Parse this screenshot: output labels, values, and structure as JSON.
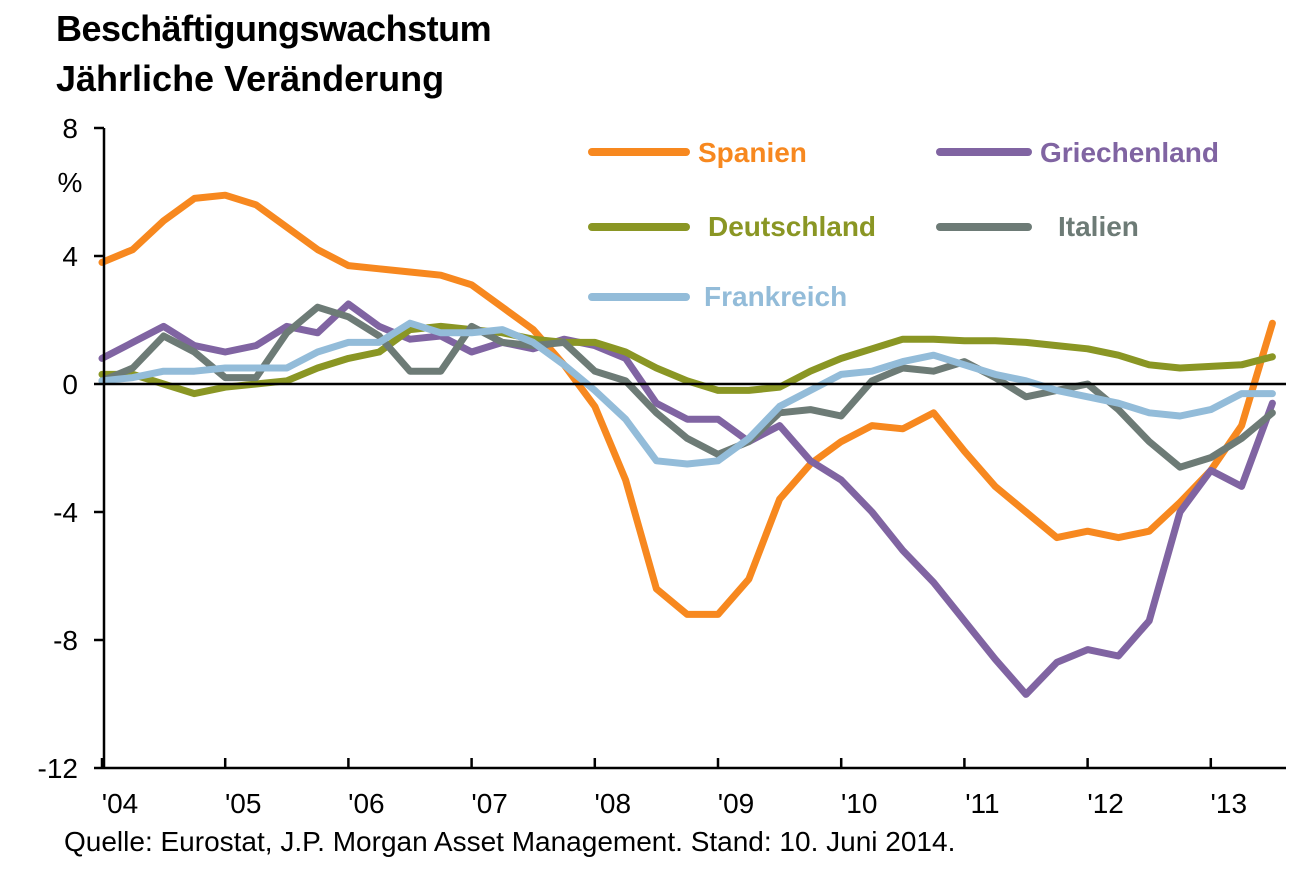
{
  "chart_data": {
    "type": "line",
    "title": "Beschäftigungswachstum",
    "subtitle": "Jährliche Veränderung",
    "ylabel": "%",
    "ylim": [
      -12,
      8
    ],
    "yticks": [
      8,
      4,
      0,
      -4,
      -8,
      -12
    ],
    "ytick_labels": [
      "8",
      "4",
      "0",
      "-4",
      "-8",
      "-12"
    ],
    "xlim": [
      2004,
      2013.75
    ],
    "xticks": [
      2004,
      2005,
      2006,
      2007,
      2008,
      2009,
      2010,
      2011,
      2012,
      2013
    ],
    "xtick_labels": [
      "'04",
      "'05",
      "'06",
      "'07",
      "'08",
      "'09",
      "'10",
      "'11",
      "'12",
      "'13"
    ],
    "grid": false,
    "legend_position": "top-right",
    "series": [
      {
        "name": "Spanien",
        "color": "#f7881f",
        "x": [
          2004,
          2004.25,
          2004.5,
          2004.75,
          2005,
          2005.25,
          2005.5,
          2005.75,
          2006,
          2006.25,
          2006.5,
          2006.75,
          2007,
          2007.25,
          2007.5,
          2007.75,
          2008,
          2008.25,
          2008.5,
          2008.75,
          2009,
          2009.25,
          2009.5,
          2009.75,
          2010,
          2010.25,
          2010.5,
          2010.75,
          2011,
          2011.25,
          2011.5,
          2011.75,
          2012,
          2012.25,
          2012.5,
          2012.75,
          2013,
          2013.25,
          2013.5
        ],
        "values": [
          3.8,
          4.2,
          5.1,
          5.8,
          5.9,
          5.6,
          4.9,
          4.2,
          3.7,
          3.6,
          3.5,
          3.4,
          3.1,
          2.4,
          1.7,
          0.6,
          -0.7,
          -3.0,
          -6.4,
          -7.2,
          -7.2,
          -6.1,
          -3.6,
          -2.5,
          -1.8,
          -1.3,
          -1.4,
          -0.9,
          -2.1,
          -3.2,
          -4.0,
          -4.8,
          -4.6,
          -4.8,
          -4.6,
          -3.7,
          -2.7,
          -1.3,
          1.9
        ]
      },
      {
        "name": "Griechenland",
        "color": "#8064a2",
        "x": [
          2004,
          2004.25,
          2004.5,
          2004.75,
          2005,
          2005.25,
          2005.5,
          2005.75,
          2006,
          2006.25,
          2006.5,
          2006.75,
          2007,
          2007.25,
          2007.5,
          2007.75,
          2008,
          2008.25,
          2008.5,
          2008.75,
          2009,
          2009.25,
          2009.5,
          2009.75,
          2010,
          2010.25,
          2010.5,
          2010.75,
          2011,
          2011.25,
          2011.5,
          2011.75,
          2012,
          2012.25,
          2012.5,
          2012.75,
          2013,
          2013.25,
          2013.5
        ],
        "values": [
          0.8,
          1.3,
          1.8,
          1.2,
          1.0,
          1.2,
          1.8,
          1.6,
          2.5,
          1.8,
          1.4,
          1.5,
          1.0,
          1.3,
          1.1,
          1.4,
          1.2,
          0.8,
          -0.6,
          -1.1,
          -1.1,
          -1.8,
          -1.3,
          -2.4,
          -3.0,
          -4.0,
          -5.2,
          -6.2,
          -7.4,
          -8.6,
          -9.7,
          -8.7,
          -8.3,
          -8.5,
          -7.4,
          -4.0,
          -2.7,
          -3.2,
          -0.6
        ]
      },
      {
        "name": "Deutschland",
        "color": "#8a9624",
        "x": [
          2004,
          2004.25,
          2004.5,
          2004.75,
          2005,
          2005.25,
          2005.5,
          2005.75,
          2006,
          2006.25,
          2006.5,
          2006.75,
          2007,
          2007.25,
          2007.5,
          2007.75,
          2008,
          2008.25,
          2008.5,
          2008.75,
          2009,
          2009.25,
          2009.5,
          2009.75,
          2010,
          2010.25,
          2010.5,
          2010.75,
          2011,
          2011.25,
          2011.5,
          2011.75,
          2012,
          2012.25,
          2012.5,
          2012.75,
          2013,
          2013.25,
          2013.5
        ],
        "values": [
          0.3,
          0.3,
          0.0,
          -0.3,
          -0.1,
          0.0,
          0.1,
          0.5,
          0.8,
          1.0,
          1.7,
          1.8,
          1.7,
          1.6,
          1.4,
          1.3,
          1.3,
          1.0,
          0.5,
          0.1,
          -0.2,
          -0.2,
          -0.1,
          0.4,
          0.8,
          1.1,
          1.4,
          1.4,
          1.35,
          1.35,
          1.3,
          1.2,
          1.1,
          0.9,
          0.6,
          0.5,
          0.55,
          0.6,
          0.85
        ]
      },
      {
        "name": "Italien",
        "color": "#6d7b76",
        "x": [
          2004,
          2004.25,
          2004.5,
          2004.75,
          2005,
          2005.25,
          2005.5,
          2005.75,
          2006,
          2006.25,
          2006.5,
          2006.75,
          2007,
          2007.25,
          2007.5,
          2007.75,
          2008,
          2008.25,
          2008.5,
          2008.75,
          2009,
          2009.25,
          2009.5,
          2009.75,
          2010,
          2010.25,
          2010.5,
          2010.75,
          2011,
          2011.25,
          2011.5,
          2011.75,
          2012,
          2012.25,
          2012.5,
          2012.75,
          2013,
          2013.25,
          2013.5
        ],
        "values": [
          0.1,
          0.5,
          1.5,
          1.0,
          0.2,
          0.2,
          1.6,
          2.4,
          2.1,
          1.5,
          0.4,
          0.4,
          1.8,
          1.3,
          1.2,
          1.3,
          0.4,
          0.1,
          -0.9,
          -1.7,
          -2.2,
          -1.8,
          -0.9,
          -0.8,
          -1.0,
          0.1,
          0.5,
          0.4,
          0.7,
          0.2,
          -0.4,
          -0.2,
          0.0,
          -0.8,
          -1.8,
          -2.6,
          -2.3,
          -1.7,
          -0.9
        ]
      },
      {
        "name": "Frankreich",
        "color": "#93bcd9",
        "x": [
          2004,
          2004.25,
          2004.5,
          2004.75,
          2005,
          2005.25,
          2005.5,
          2005.75,
          2006,
          2006.25,
          2006.5,
          2006.75,
          2007,
          2007.25,
          2007.5,
          2007.75,
          2008,
          2008.25,
          2008.5,
          2008.75,
          2009,
          2009.25,
          2009.5,
          2009.75,
          2010,
          2010.25,
          2010.5,
          2010.75,
          2011,
          2011.25,
          2011.5,
          2011.75,
          2012,
          2012.25,
          2012.5,
          2012.75,
          2013,
          2013.25,
          2013.5
        ],
        "values": [
          0.1,
          0.2,
          0.4,
          0.4,
          0.5,
          0.5,
          0.5,
          1.0,
          1.3,
          1.3,
          1.9,
          1.6,
          1.6,
          1.7,
          1.3,
          0.6,
          -0.2,
          -1.1,
          -2.4,
          -2.5,
          -2.4,
          -1.7,
          -0.7,
          -0.2,
          0.3,
          0.4,
          0.7,
          0.9,
          0.6,
          0.3,
          0.1,
          -0.2,
          -0.4,
          -0.6,
          -0.9,
          -1.0,
          -0.8,
          -0.3,
          -0.3
        ]
      }
    ],
    "source": "Quelle: Eurostat, J.P. Morgan Asset Management. Stand: 10. Juni 2014."
  }
}
